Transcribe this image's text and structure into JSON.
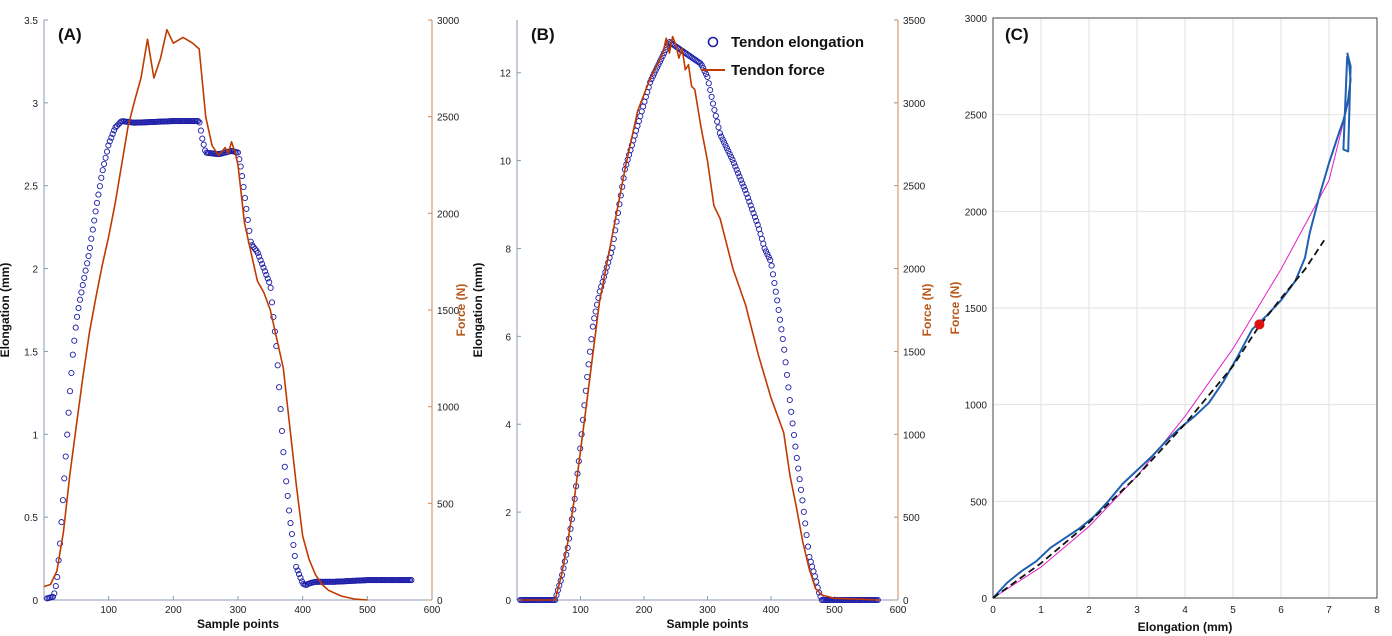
{
  "colors": {
    "elongation": "#1c1ca8",
    "force": "#c03a00",
    "panelC_curve": "#1f5fb0",
    "panelC_fit": "#111111",
    "panelC_model": "#e020c8",
    "panelC_marker": "#e01010",
    "grid": "#e2e2e2"
  },
  "chart_data": [
    {
      "panel": "(A)",
      "type": "line",
      "xlabel": "Sample points",
      "ylabel": "Elongation (mm)",
      "y2label": "Force (N)",
      "xlim": [
        0,
        600
      ],
      "ylim": [
        0,
        3.5
      ],
      "y2lim": [
        0,
        3000
      ],
      "xticks": [
        "100",
        "200",
        "300",
        "400",
        "500",
        "600"
      ],
      "yticks": [
        "0",
        "0.5",
        "1",
        "1.5",
        "2",
        "2.5",
        "3",
        "3.5"
      ],
      "y2ticks": [
        "0",
        "500",
        "1000",
        "1500",
        "2000",
        "2500",
        "3000"
      ],
      "series": [
        {
          "axis": "left",
          "style": "markers",
          "x": [
            5,
            15,
            20,
            25,
            30,
            35,
            40,
            45,
            50,
            55,
            60,
            65,
            70,
            80,
            90,
            100,
            110,
            120,
            140,
            200,
            240,
            245,
            250,
            270,
            290,
            300,
            305,
            310,
            315,
            320,
            330,
            340,
            350,
            360,
            365,
            370,
            380,
            390,
            400,
            405,
            410,
            420,
            450,
            500,
            570
          ],
          "y": [
            0.01,
            0.02,
            0.12,
            0.35,
            0.65,
            0.95,
            1.25,
            1.5,
            1.68,
            1.8,
            1.9,
            2.0,
            2.1,
            2.35,
            2.58,
            2.75,
            2.85,
            2.89,
            2.88,
            2.89,
            2.89,
            2.78,
            2.7,
            2.69,
            2.71,
            2.7,
            2.6,
            2.45,
            2.3,
            2.15,
            2.1,
            2.0,
            1.9,
            1.5,
            1.2,
            0.9,
            0.5,
            0.2,
            0.1,
            0.09,
            0.1,
            0.11,
            0.11,
            0.12,
            0.12
          ]
        },
        {
          "axis": "right",
          "style": "line",
          "x": [
            0,
            10,
            20,
            30,
            40,
            50,
            60,
            70,
            80,
            90,
            100,
            110,
            120,
            130,
            140,
            150,
            160,
            170,
            180,
            190,
            200,
            210,
            215,
            220,
            230,
            240,
            250,
            260,
            270,
            280,
            285,
            290,
            295,
            300,
            310,
            320,
            330,
            340,
            350,
            360,
            370,
            380,
            390,
            400,
            410,
            420,
            430,
            440,
            460,
            480,
            500
          ],
          "y": [
            70,
            80,
            150,
            350,
            650,
            900,
            1150,
            1380,
            1560,
            1730,
            1880,
            2050,
            2250,
            2450,
            2580,
            2700,
            2900,
            2700,
            2800,
            2950,
            2880,
            2900,
            2910,
            2900,
            2880,
            2850,
            2500,
            2350,
            2300,
            2340,
            2310,
            2370,
            2320,
            2250,
            1950,
            1800,
            1650,
            1590,
            1500,
            1350,
            1200,
            900,
            600,
            330,
            210,
            130,
            80,
            50,
            20,
            5,
            0
          ]
        }
      ]
    },
    {
      "panel": "(B)",
      "type": "line",
      "xlabel": "Sample points",
      "ylabel": "Elongation (mm)",
      "y2label": "Force (N)",
      "xlim": [
        0,
        600
      ],
      "ylim": [
        0,
        13.2
      ],
      "y2lim": [
        0,
        3500
      ],
      "xticks": [
        "100",
        "200",
        "300",
        "400",
        "500",
        "600"
      ],
      "yticks": [
        "0",
        "2",
        "4",
        "6",
        "8",
        "10",
        "12"
      ],
      "y2ticks": [
        "0",
        "500",
        "1000",
        "1500",
        "2000",
        "2500",
        "3000",
        "3500"
      ],
      "legend": [
        "Tendon elongation",
        "Tendon force"
      ],
      "series": [
        {
          "name": "Tendon elongation",
          "axis": "left",
          "style": "markers",
          "x": [
            5,
            20,
            40,
            60,
            70,
            80,
            90,
            100,
            110,
            120,
            130,
            150,
            170,
            190,
            210,
            230,
            240,
            250,
            260,
            270,
            280,
            290,
            300,
            310,
            320,
            340,
            360,
            380,
            390,
            400,
            410,
            420,
            430,
            440,
            450,
            460,
            470,
            475,
            480,
            490,
            510,
            540,
            570
          ],
          "y": [
            0.0,
            0.0,
            0.0,
            0.0,
            0.5,
            1.2,
            2.2,
            3.5,
            5.0,
            6.3,
            7.0,
            8.0,
            9.8,
            10.8,
            11.8,
            12.4,
            12.7,
            12.6,
            12.5,
            12.4,
            12.3,
            12.2,
            11.9,
            11.2,
            10.6,
            10.0,
            9.3,
            8.5,
            8.0,
            7.7,
            6.8,
            5.8,
            4.5,
            3.3,
            2.2,
            1.0,
            0.5,
            0.2,
            0.0,
            0.0,
            0.0,
            0.0,
            0.0
          ]
        },
        {
          "name": "Tendon force",
          "axis": "right",
          "style": "line",
          "x": [
            5,
            20,
            40,
            60,
            70,
            80,
            90,
            100,
            110,
            120,
            130,
            150,
            170,
            190,
            210,
            230,
            235,
            240,
            245,
            250,
            255,
            260,
            265,
            270,
            275,
            280,
            290,
            300,
            310,
            320,
            340,
            360,
            380,
            400,
            420,
            430,
            440,
            450,
            460,
            470,
            480,
            500,
            540,
            570
          ],
          "y": [
            0,
            0,
            0,
            0,
            150,
            350,
            600,
            900,
            1200,
            1500,
            1800,
            2200,
            2600,
            2950,
            3150,
            3300,
            3390,
            3300,
            3400,
            3350,
            3270,
            3330,
            3200,
            3230,
            3100,
            3080,
            2850,
            2650,
            2380,
            2300,
            2000,
            1780,
            1480,
            1220,
            1010,
            750,
            560,
            350,
            190,
            70,
            30,
            10,
            5,
            0
          ]
        }
      ]
    },
    {
      "panel": "(C)",
      "type": "line",
      "xlabel": "Elongation (mm)",
      "ylabel": "Force (N)",
      "xlim": [
        0,
        8
      ],
      "ylim": [
        0,
        3000
      ],
      "grid": true,
      "xticks": [
        "0",
        "1",
        "2",
        "3",
        "4",
        "5",
        "6",
        "7",
        "8"
      ],
      "yticks": [
        "0",
        "500",
        "1000",
        "1500",
        "2000",
        "2500",
        "3000"
      ],
      "series": [
        {
          "style": "line",
          "x": [
            0.0,
            0.3,
            0.6,
            0.9,
            1.2,
            1.5,
            1.8,
            2.1,
            2.4,
            2.7,
            3.0,
            3.3,
            3.6,
            3.9,
            4.2,
            4.5,
            4.8,
            5.1,
            5.4,
            5.7,
            6.0,
            6.3,
            6.5,
            6.6,
            6.8,
            7.0,
            7.2,
            7.3,
            7.35,
            7.4,
            7.45,
            7.42,
            7.38,
            7.3,
            7.4,
            7.45,
            7.38
          ],
          "y": [
            0,
            80,
            140,
            190,
            260,
            310,
            360,
            420,
            500,
            590,
            660,
            730,
            810,
            880,
            940,
            1010,
            1120,
            1250,
            1390,
            1460,
            1540,
            1640,
            1760,
            1890,
            2080,
            2250,
            2400,
            2470,
            2520,
            2580,
            2680,
            2760,
            2800,
            2320,
            2310,
            2750,
            2820
          ]
        },
        {
          "style": "dashed",
          "x": [
            0.0,
            1.0,
            2.0,
            3.0,
            4.0,
            5.0,
            5.5,
            6.0,
            6.5,
            6.9
          ],
          "y": [
            0,
            180,
            390,
            630,
            900,
            1200,
            1390,
            1550,
            1700,
            1850
          ]
        },
        {
          "style": "line",
          "x": [
            0.0,
            1.0,
            2.0,
            3.0,
            4.0,
            5.0,
            6.0,
            7.0,
            7.4
          ],
          "y": [
            0,
            160,
            370,
            630,
            940,
            1290,
            1700,
            2160,
            2560
          ]
        },
        {
          "style": "marker",
          "x": [
            5.55
          ],
          "y": [
            1415
          ]
        }
      ]
    }
  ]
}
